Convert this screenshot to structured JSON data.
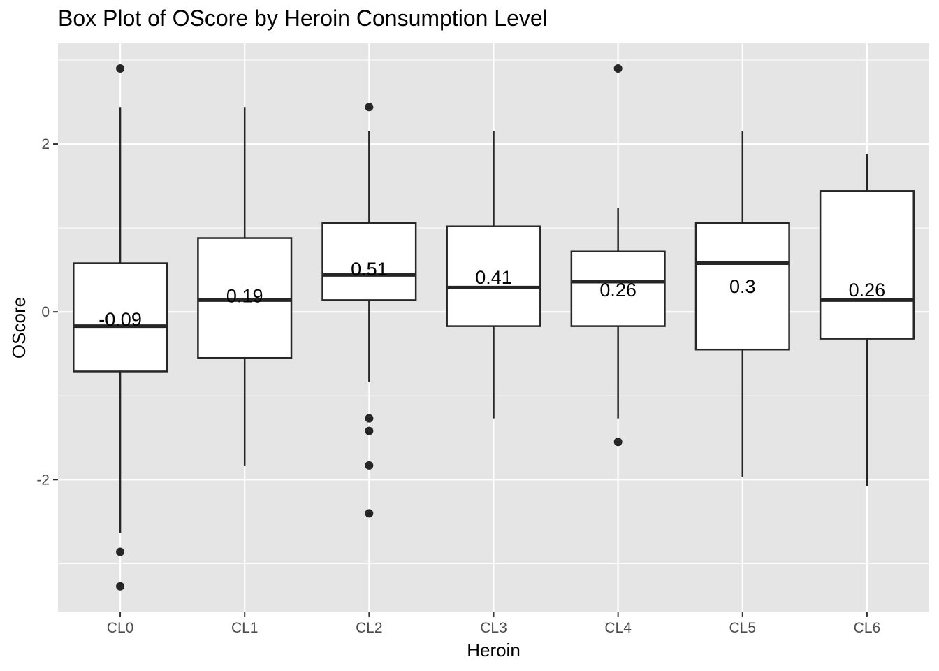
{
  "chart_data": {
    "type": "box",
    "title": "Box Plot of OScore by Heroin Consumption Level",
    "xlabel": "Heroin",
    "ylabel": "OScore",
    "categories": [
      "CL0",
      "CL1",
      "CL2",
      "CL3",
      "CL4",
      "CL5",
      "CL6"
    ],
    "ylim": [
      -3.58,
      3.2
    ],
    "yticks": [
      -2,
      0,
      2
    ],
    "ytick_labels": [
      "-2",
      "0",
      "2"
    ],
    "grid": true,
    "legend": "none",
    "boxes": [
      {
        "category": "CL0",
        "whisker_low": -2.63,
        "q1": -0.71,
        "median": -0.17,
        "q3": 0.58,
        "whisker_high": 2.44,
        "outliers": [
          2.9,
          -2.86,
          -3.27
        ],
        "label": "-0.09",
        "label_value": -0.09
      },
      {
        "category": "CL1",
        "whisker_low": -1.83,
        "q1": -0.55,
        "median": 0.14,
        "q3": 0.88,
        "whisker_high": 2.44,
        "outliers": [],
        "label": "0.19",
        "label_value": 0.19
      },
      {
        "category": "CL2",
        "whisker_low": -0.84,
        "q1": 0.14,
        "median": 0.44,
        "q3": 1.06,
        "whisker_high": 2.15,
        "outliers": [
          2.44,
          -1.27,
          -1.42,
          -1.83,
          -2.4
        ],
        "label": "0.51",
        "label_value": 0.51
      },
      {
        "category": "CL3",
        "whisker_low": -1.27,
        "q1": -0.17,
        "median": 0.29,
        "q3": 1.02,
        "whisker_high": 2.15,
        "outliers": [],
        "label": "0.41",
        "label_value": 0.41
      },
      {
        "category": "CL4",
        "whisker_low": -1.27,
        "q1": -0.17,
        "median": 0.36,
        "q3": 0.72,
        "whisker_high": 1.24,
        "outliers": [
          2.9,
          -1.55
        ],
        "label": "0.26",
        "label_value": 0.26
      },
      {
        "category": "CL5",
        "whisker_low": -1.97,
        "q1": -0.45,
        "median": 0.58,
        "q3": 1.06,
        "whisker_high": 2.15,
        "outliers": [],
        "label": "0.3",
        "label_value": 0.3
      },
      {
        "category": "CL6",
        "whisker_low": -2.08,
        "q1": -0.32,
        "median": 0.14,
        "q3": 1.44,
        "whisker_high": 1.88,
        "outliers": [],
        "label": "0.26",
        "label_value": 0.26
      }
    ]
  },
  "colors": {
    "panel_background": "#e5e5e5",
    "grid": "#ffffff",
    "box_fill": "#ffffff",
    "box_stroke": "#262626",
    "outlier": "#262626"
  }
}
